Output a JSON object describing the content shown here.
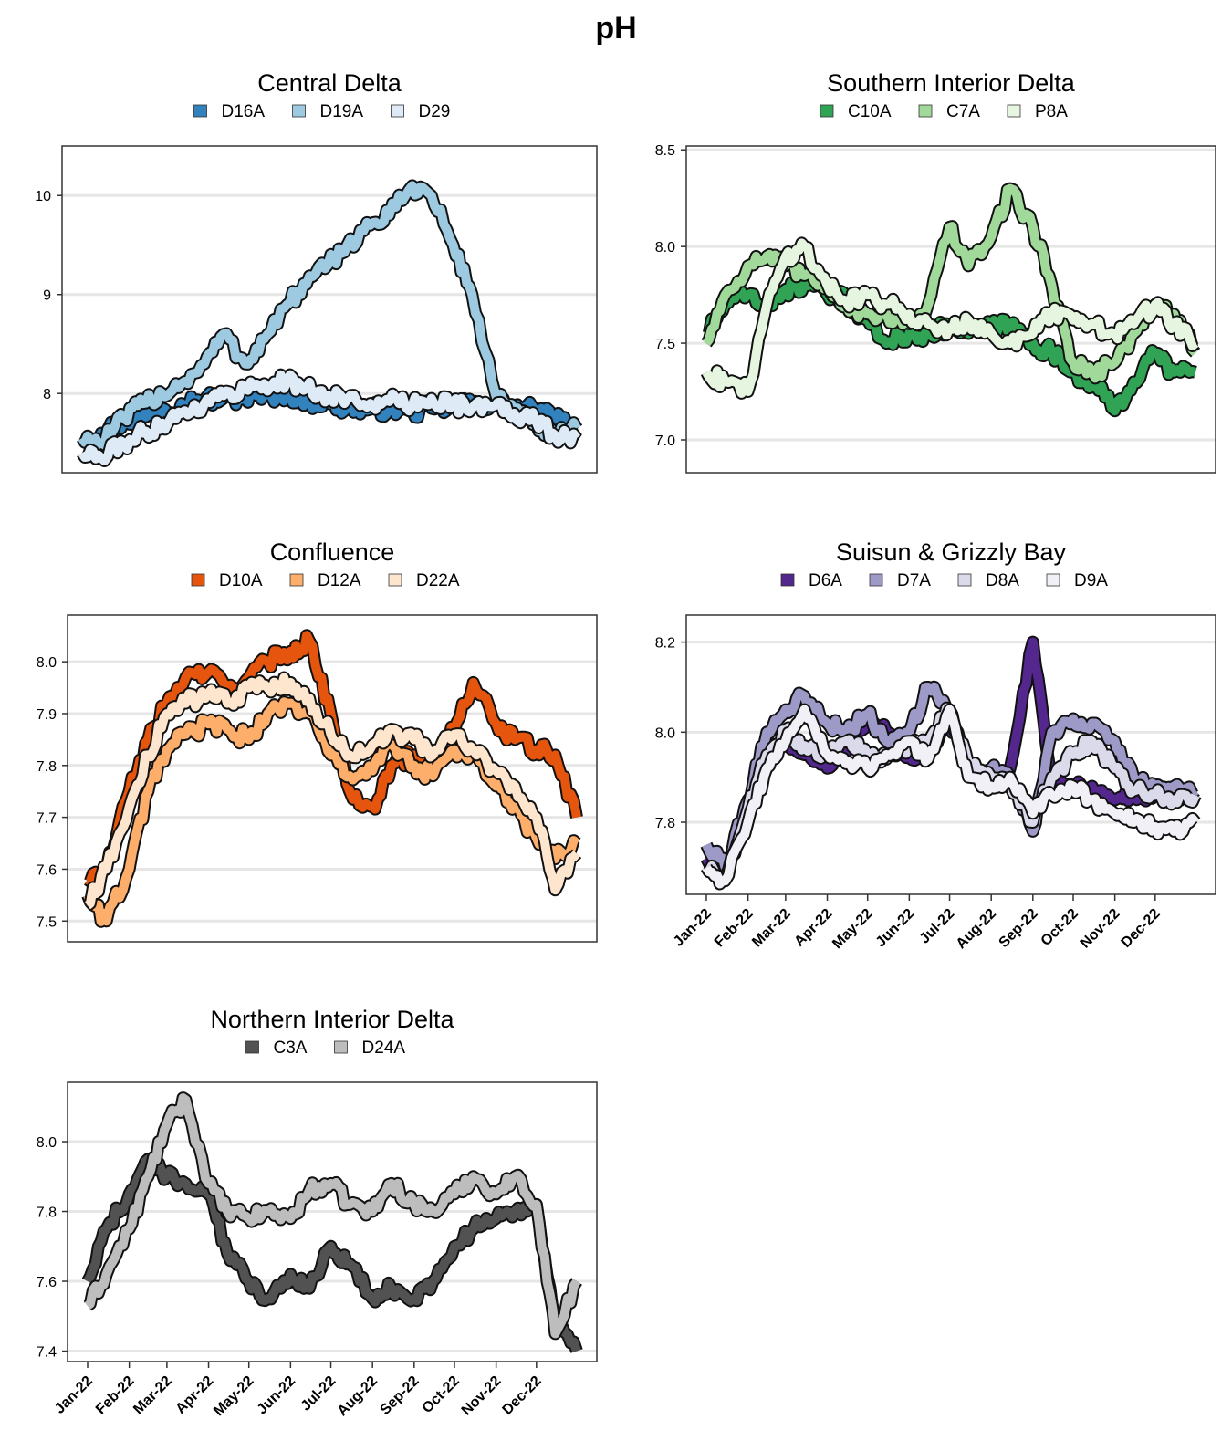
{
  "title": "pH",
  "months": [
    "Jan-22",
    "Feb-22",
    "Mar-22",
    "Apr-22",
    "May-22",
    "Jun-22",
    "Jul-22",
    "Aug-22",
    "Sep-22",
    "Oct-22",
    "Nov-22",
    "Dec-22"
  ],
  "chart_data": [
    {
      "type": "line",
      "title": "Central Delta",
      "xlabel": "",
      "ylabel": "",
      "ylim": [
        7.2,
        10.5
      ],
      "yticks": [
        "8",
        "9",
        "10"
      ],
      "grid": true,
      "legend_position": "top",
      "x_dates": [
        "2022-01-01",
        "2022-01-15",
        "2022-02-01",
        "2022-02-15",
        "2022-03-01",
        "2022-03-15",
        "2022-04-01",
        "2022-04-15",
        "2022-05-01",
        "2022-05-15",
        "2022-06-01",
        "2022-06-15",
        "2022-07-01",
        "2022-07-15",
        "2022-08-01",
        "2022-08-15",
        "2022-09-01",
        "2022-09-15",
        "2022-10-01",
        "2022-10-15",
        "2022-11-01",
        "2022-11-15",
        "2022-12-01",
        "2022-12-15",
        "2022-12-31"
      ],
      "series": [
        {
          "name": "D16A",
          "color": "#3182bd",
          "values": [
            7.55,
            7.6,
            7.72,
            7.78,
            7.85,
            7.9,
            7.94,
            7.95,
            7.96,
            7.98,
            8.0,
            7.93,
            7.9,
            7.86,
            7.84,
            7.85,
            7.82,
            7.85,
            7.87,
            7.88,
            7.9,
            7.86,
            7.82,
            7.75,
            7.62
          ]
        },
        {
          "name": "D19A",
          "color": "#9ecae1",
          "values": [
            7.55,
            7.5,
            7.75,
            7.9,
            8.0,
            8.1,
            8.3,
            8.6,
            8.3,
            8.55,
            8.9,
            9.1,
            9.3,
            9.5,
            9.7,
            9.8,
            10.1,
            10.0,
            9.5,
            9.0,
            8.0,
            7.8,
            7.7,
            7.55,
            7.65
          ]
        },
        {
          "name": "D29",
          "color": "#deebf7",
          "values": [
            7.4,
            7.35,
            7.5,
            7.6,
            7.7,
            7.8,
            7.9,
            7.98,
            8.05,
            8.1,
            8.12,
            8.05,
            7.98,
            7.94,
            7.9,
            7.92,
            7.88,
            7.95,
            7.9,
            7.85,
            7.88,
            7.8,
            7.72,
            7.58,
            7.55
          ]
        }
      ]
    },
    {
      "type": "line",
      "title": "Southern Interior Delta",
      "xlabel": "",
      "ylabel": "",
      "ylim": [
        6.83,
        8.52
      ],
      "yticks": [
        "7.0",
        "7.5",
        "8.0",
        "8.5"
      ],
      "grid": true,
      "legend_position": "top",
      "x_dates": [
        "2022-01-01",
        "2022-01-15",
        "2022-02-01",
        "2022-02-15",
        "2022-03-01",
        "2022-03-15",
        "2022-04-01",
        "2022-04-15",
        "2022-05-01",
        "2022-05-15",
        "2022-06-01",
        "2022-06-15",
        "2022-07-01",
        "2022-07-15",
        "2022-08-01",
        "2022-08-15",
        "2022-09-01",
        "2022-09-15",
        "2022-10-01",
        "2022-10-15",
        "2022-11-01",
        "2022-11-15",
        "2022-12-01",
        "2022-12-15",
        "2022-12-31"
      ],
      "series": [
        {
          "name": "C10A",
          "color": "#31a354",
          "values": [
            7.55,
            7.7,
            7.75,
            7.7,
            7.78,
            7.8,
            7.75,
            7.72,
            7.62,
            7.5,
            7.55,
            7.55,
            7.58,
            7.55,
            7.58,
            7.6,
            7.5,
            7.45,
            7.35,
            7.3,
            7.15,
            7.3,
            7.45,
            7.35,
            7.35
          ]
        },
        {
          "name": "C7A",
          "color": "#a1d99b",
          "values": [
            7.5,
            7.75,
            7.9,
            7.95,
            7.9,
            7.85,
            7.8,
            7.7,
            7.65,
            7.65,
            7.6,
            7.7,
            8.1,
            7.9,
            8.05,
            8.3,
            8.1,
            7.8,
            7.4,
            7.35,
            7.4,
            7.55,
            7.7,
            7.65,
            7.45
          ]
        },
        {
          "name": "P8A",
          "color": "#e5f5e0",
          "values": [
            7.35,
            7.3,
            7.25,
            7.7,
            7.95,
            8.0,
            7.8,
            7.72,
            7.75,
            7.7,
            7.65,
            7.6,
            7.58,
            7.62,
            7.55,
            7.5,
            7.55,
            7.65,
            7.62,
            7.6,
            7.55,
            7.6,
            7.7,
            7.6,
            7.5
          ]
        }
      ]
    },
    {
      "type": "line",
      "title": "Confluence",
      "xlabel": "",
      "ylabel": "",
      "ylim": [
        7.46,
        8.09
      ],
      "yticks": [
        "7.5",
        "7.6",
        "7.7",
        "7.8",
        "7.9",
        "8.0"
      ],
      "grid": true,
      "legend_position": "top",
      "x_dates": [
        "2022-01-01",
        "2022-01-15",
        "2022-02-01",
        "2022-02-15",
        "2022-03-01",
        "2022-03-15",
        "2022-04-01",
        "2022-04-15",
        "2022-05-01",
        "2022-05-15",
        "2022-06-01",
        "2022-06-15",
        "2022-07-01",
        "2022-07-15",
        "2022-08-01",
        "2022-08-15",
        "2022-09-01",
        "2022-09-15",
        "2022-10-01",
        "2022-10-15",
        "2022-11-01",
        "2022-11-15",
        "2022-12-01",
        "2022-12-15",
        "2022-12-31"
      ],
      "series": [
        {
          "name": "D10A",
          "color": "#e6550d",
          "values": [
            7.58,
            7.6,
            7.75,
            7.85,
            7.92,
            7.97,
            7.98,
            7.95,
            7.97,
            8.0,
            8.02,
            8.04,
            7.9,
            7.75,
            7.72,
            7.8,
            7.82,
            7.8,
            7.87,
            7.96,
            7.88,
            7.85,
            7.83,
            7.82,
            7.7
          ]
        },
        {
          "name": "D12A",
          "color": "#fdae6b",
          "values": [
            7.55,
            7.5,
            7.6,
            7.75,
            7.83,
            7.86,
            7.88,
            7.87,
            7.85,
            7.9,
            7.92,
            7.9,
            7.82,
            7.78,
            7.79,
            7.84,
            7.8,
            7.78,
            7.83,
            7.82,
            7.76,
            7.72,
            7.66,
            7.62,
            7.65
          ]
        },
        {
          "name": "D22A",
          "color": "#fee6ce",
          "values": [
            7.53,
            7.6,
            7.72,
            7.82,
            7.9,
            7.92,
            7.94,
            7.92,
            7.95,
            7.95,
            7.96,
            7.93,
            7.86,
            7.82,
            7.84,
            7.87,
            7.85,
            7.82,
            7.86,
            7.83,
            7.79,
            7.76,
            7.7,
            7.56,
            7.63
          ]
        }
      ]
    },
    {
      "type": "line",
      "title": "Suisun & Grizzly Bay",
      "xlabel": "",
      "ylabel": "",
      "ylim": [
        7.64,
        8.26
      ],
      "yticks": [
        "7.8",
        "8.0",
        "8.2"
      ],
      "grid": true,
      "legend_position": "top",
      "x_dates": [
        "2022-01-01",
        "2022-01-15",
        "2022-02-01",
        "2022-02-15",
        "2022-03-01",
        "2022-03-15",
        "2022-04-01",
        "2022-04-15",
        "2022-05-01",
        "2022-05-15",
        "2022-06-01",
        "2022-06-15",
        "2022-07-01",
        "2022-07-15",
        "2022-08-01",
        "2022-08-15",
        "2022-09-01",
        "2022-09-15",
        "2022-10-01",
        "2022-10-15",
        "2022-11-01",
        "2022-11-15",
        "2022-12-01",
        "2022-12-15",
        "2022-12-31"
      ],
      "series": [
        {
          "name": "D6A",
          "color": "#54278f",
          "values": [
            7.72,
            7.68,
            7.82,
            7.95,
            7.98,
            7.95,
            7.92,
            7.96,
            8.02,
            8.0,
            7.95,
            7.96,
            8.02,
            7.92,
            7.9,
            7.92,
            8.2,
            7.9,
            7.88,
            7.88,
            7.85,
            7.86,
            7.86,
            7.86,
            7.86
          ]
        },
        {
          "name": "D7A",
          "color": "#9e9ac8",
          "values": [
            7.75,
            7.7,
            7.85,
            8.0,
            8.05,
            8.08,
            8.02,
            8.0,
            8.04,
            7.98,
            8.0,
            8.1,
            8.05,
            7.92,
            7.92,
            7.9,
            7.78,
            8.0,
            8.03,
            8.02,
            7.98,
            7.9,
            7.87,
            7.88,
            7.87
          ]
        },
        {
          "name": "D8A",
          "color": "#dadaeb",
          "values": [
            7.7,
            7.68,
            7.83,
            7.95,
            8.0,
            7.97,
            7.95,
            7.98,
            7.95,
            7.94,
            7.97,
            7.98,
            8.05,
            7.93,
            7.9,
            7.88,
            7.8,
            7.9,
            7.95,
            7.98,
            7.92,
            7.87,
            7.86,
            7.85,
            7.86
          ]
        },
        {
          "name": "D9A",
          "color": "#f2f0f7",
          "values": [
            7.7,
            7.67,
            7.8,
            7.92,
            7.98,
            8.05,
            7.95,
            7.93,
            7.92,
            7.95,
            7.98,
            7.94,
            8.05,
            7.9,
            7.88,
            7.9,
            7.82,
            7.86,
            7.88,
            7.85,
            7.82,
            7.8,
            7.79,
            7.78,
            7.8
          ]
        }
      ]
    },
    {
      "type": "line",
      "title": "Northern Interior Delta",
      "xlabel": "",
      "ylabel": "",
      "ylim": [
        7.37,
        8.17
      ],
      "yticks": [
        "7.4",
        "7.6",
        "7.8",
        "8.0"
      ],
      "grid": true,
      "legend_position": "top",
      "x_dates": [
        "2022-01-01",
        "2022-01-15",
        "2022-02-01",
        "2022-02-15",
        "2022-03-01",
        "2022-03-15",
        "2022-04-01",
        "2022-04-15",
        "2022-05-01",
        "2022-05-15",
        "2022-06-01",
        "2022-06-15",
        "2022-07-01",
        "2022-07-15",
        "2022-08-01",
        "2022-08-15",
        "2022-09-01",
        "2022-09-15",
        "2022-10-01",
        "2022-10-15",
        "2022-11-01",
        "2022-11-15",
        "2022-12-01",
        "2022-12-15",
        "2022-12-31"
      ],
      "series": [
        {
          "name": "C3A",
          "color": "#525252",
          "values": [
            7.6,
            7.75,
            7.85,
            7.95,
            7.9,
            7.88,
            7.85,
            7.68,
            7.6,
            7.55,
            7.62,
            7.58,
            7.7,
            7.65,
            7.55,
            7.58,
            7.55,
            7.6,
            7.7,
            7.75,
            7.78,
            7.8,
            7.82,
            7.48,
            7.4
          ]
        },
        {
          "name": "D24A",
          "color": "#bdbdbd",
          "values": [
            7.53,
            7.62,
            7.75,
            7.9,
            8.05,
            8.12,
            7.88,
            7.8,
            7.78,
            7.8,
            7.78,
            7.86,
            7.88,
            7.82,
            7.8,
            7.88,
            7.82,
            7.8,
            7.85,
            7.9,
            7.85,
            7.9,
            7.82,
            7.45,
            7.6
          ]
        }
      ]
    }
  ]
}
